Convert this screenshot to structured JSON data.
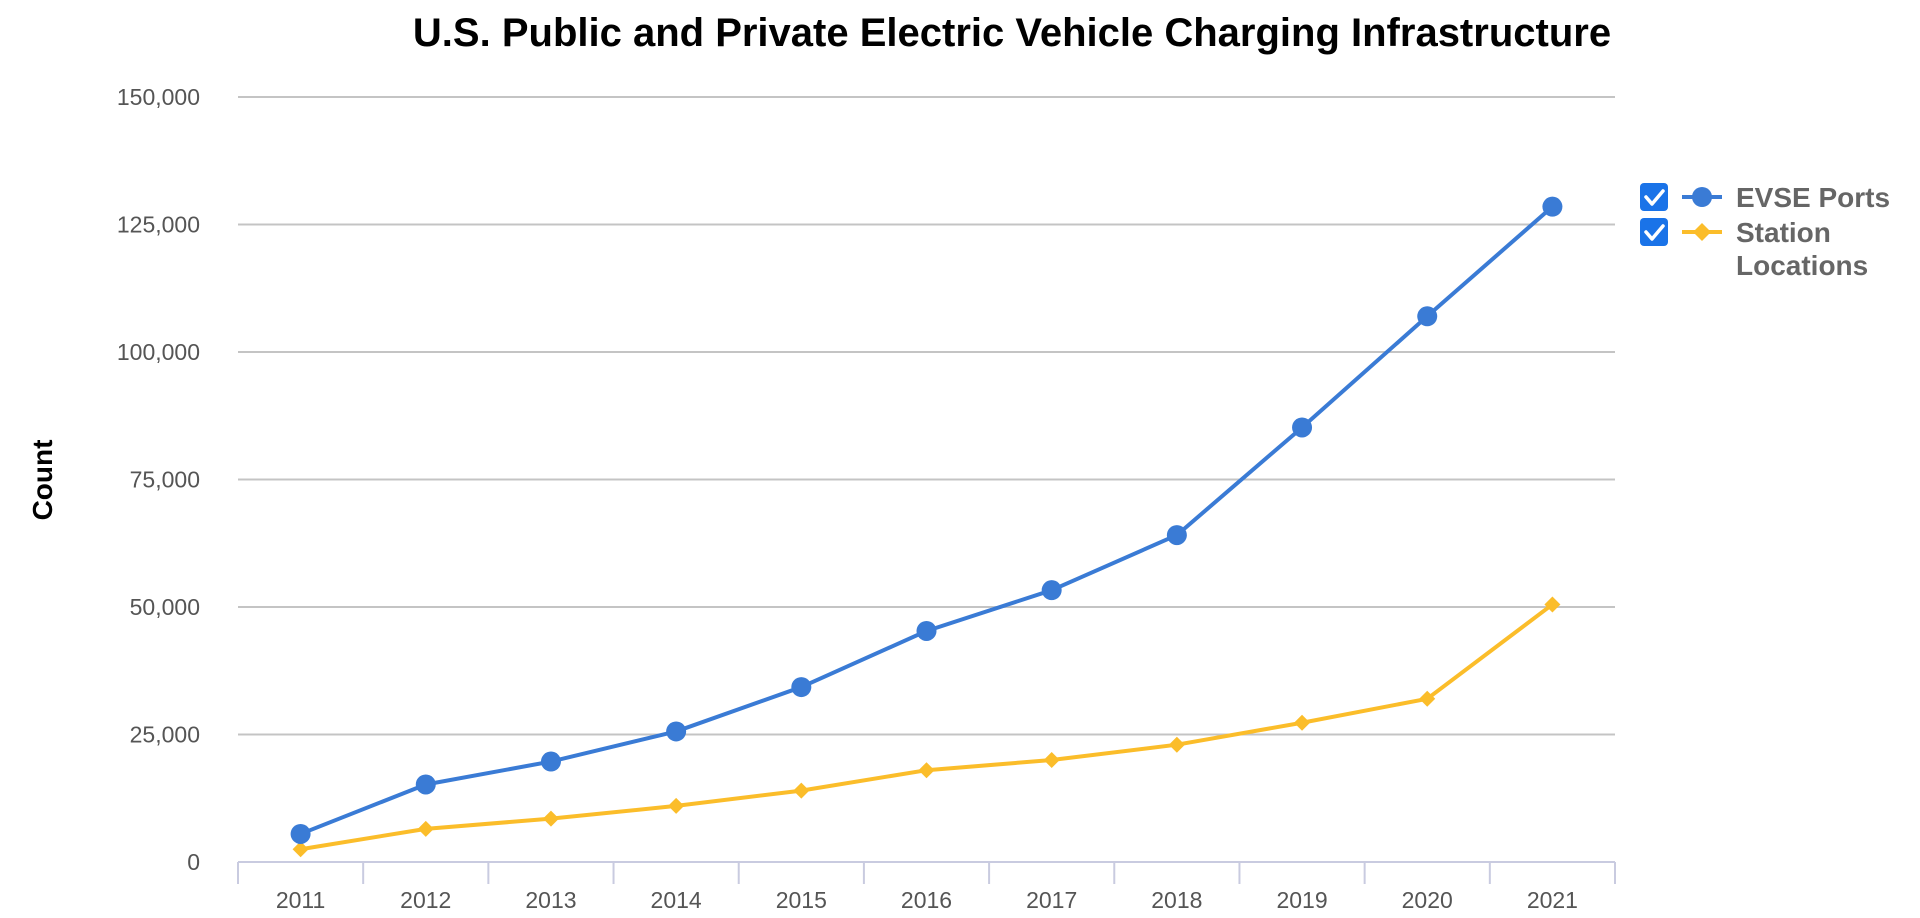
{
  "chart_data": {
    "type": "line",
    "title": "U.S. Public and Private Electric Vehicle Charging Infrastructure",
    "xlabel": "",
    "ylabel": "Count",
    "categories": [
      "2011",
      "2012",
      "2013",
      "2014",
      "2015",
      "2016",
      "2017",
      "2018",
      "2019",
      "2020",
      "2021"
    ],
    "y_ticks": [
      "0",
      "25,000",
      "50,000",
      "75,000",
      "100,000",
      "125,000",
      "150,000"
    ],
    "ylim": [
      0,
      150000
    ],
    "grid": true,
    "legend_position": "right",
    "series": [
      {
        "name": "EVSE Ports",
        "color": "#3a7bd5",
        "marker": "circle",
        "checked": true,
        "values": [
          5500,
          15200,
          19700,
          25600,
          34300,
          45300,
          53300,
          64100,
          85200,
          107000,
          128500
        ]
      },
      {
        "name": "Station Locations",
        "color": "#fbbd2a",
        "marker": "diamond",
        "checked": true,
        "values": [
          2500,
          6500,
          8500,
          11000,
          14000,
          18000,
          20000,
          23000,
          27300,
          32000,
          50500
        ]
      }
    ]
  }
}
